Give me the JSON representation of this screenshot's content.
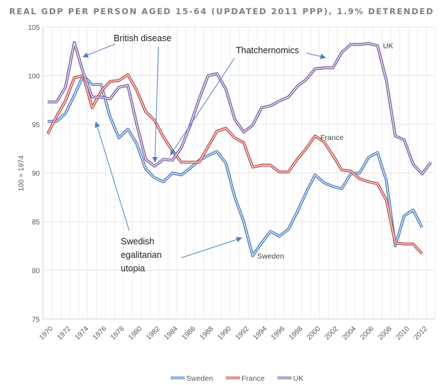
{
  "chart_data": {
    "type": "line",
    "title": "REAL GDP PER PERSON AGED 15-64 (UPDATED 2011 PPP), 1.9% DETRENDED",
    "ylabel": "100 = 1974",
    "xlabel": "",
    "ylim": [
      75,
      105
    ],
    "yticks": [
      75,
      80,
      85,
      90,
      95,
      100,
      105
    ],
    "xlim": [
      1970,
      2013
    ],
    "xticks": [
      "1970",
      "1972",
      "1974",
      "1976",
      "1978",
      "1980",
      "1982",
      "1984",
      "1986",
      "1988",
      "1990",
      "1992",
      "1994",
      "1996",
      "1998",
      "2000",
      "2002",
      "2004",
      "2006",
      "2008",
      "2010",
      "2012"
    ],
    "grid": true,
    "legend_position": "bottom",
    "series": [
      {
        "name": "Sweden",
        "color": "#4f81bd",
        "start_year": 1970,
        "values": [
          95.3,
          95.3,
          96.1,
          98.0,
          100.0,
          99.1,
          99.1,
          95.8,
          93.6,
          94.5,
          93.0,
          90.4,
          89.5,
          89.1,
          90.0,
          89.8,
          90.5,
          91.3,
          91.8,
          92.2,
          91.0,
          87.5,
          85.0,
          81.5,
          82.8,
          84.0,
          83.5,
          84.2,
          86.0,
          88.0,
          89.8,
          89.0,
          88.6,
          88.4,
          89.9,
          90.0,
          91.6,
          92.1,
          89.2,
          82.5,
          85.6,
          86.2,
          84.4
        ]
      },
      {
        "name": "France",
        "color": "#c0504d",
        "start_year": 1970,
        "values": [
          94.0,
          95.8,
          97.4,
          99.8,
          100.0,
          96.7,
          98.4,
          99.4,
          99.5,
          100.1,
          98.5,
          96.3,
          95.4,
          93.7,
          92.3,
          91.1,
          91.1,
          91.1,
          92.7,
          94.3,
          94.6,
          93.6,
          93.1,
          90.6,
          90.8,
          90.8,
          90.1,
          90.1,
          91.4,
          92.5,
          93.8,
          93.2,
          91.8,
          90.3,
          90.2,
          89.4,
          89.1,
          88.9,
          87.2,
          82.8,
          82.7,
          82.7,
          81.7
        ]
      },
      {
        "name": "UK",
        "color": "#8064a2",
        "start_year": 1970,
        "values": [
          97.3,
          97.3,
          98.8,
          103.4,
          100.3,
          97.8,
          97.8,
          97.6,
          98.8,
          99.0,
          95.0,
          91.4,
          90.7,
          91.4,
          91.3,
          92.6,
          94.9,
          97.6,
          100.0,
          100.2,
          98.6,
          95.5,
          94.2,
          94.9,
          96.7,
          96.9,
          97.4,
          97.8,
          98.9,
          99.6,
          100.7,
          100.8,
          100.8,
          102.4,
          103.2,
          103.2,
          103.3,
          103.1,
          99.5,
          93.8,
          93.4,
          90.9,
          89.9,
          91.1
        ]
      }
    ],
    "annotations": [
      {
        "text": [
          "British disease"
        ]
      },
      {
        "text": [
          "Thatchernomics"
        ]
      },
      {
        "text": [
          "Swedish",
          "egalitarian",
          "utopia"
        ]
      }
    ],
    "series_labels": [
      "UK",
      "France",
      "Sweden"
    ],
    "arrow_color": "#4f81bd"
  }
}
